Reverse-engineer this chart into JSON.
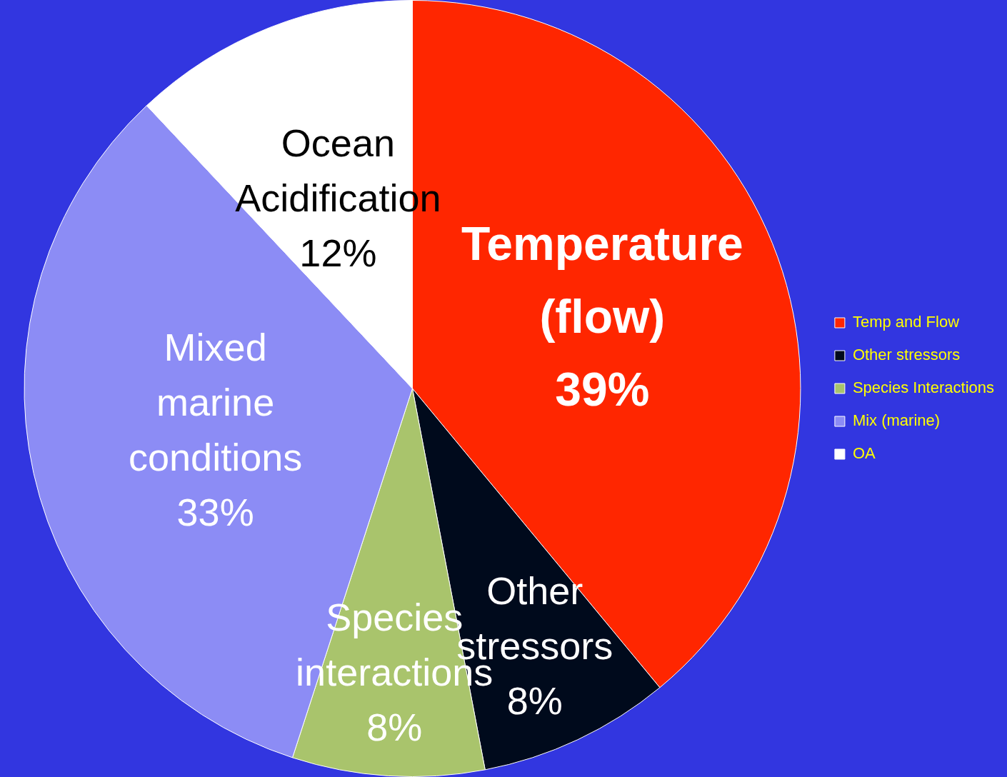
{
  "chart_data": {
    "type": "pie",
    "categories": [
      "Temp and Flow",
      "Other stressors",
      "Species Interactions",
      "Mix (marine)",
      "OA"
    ],
    "values": [
      39,
      8,
      8,
      33,
      12
    ],
    "colors": [
      "#ff2600",
      "#000a1c",
      "#a9c46c",
      "#8c8cf5",
      "#ffffff"
    ],
    "value_labels": [
      "Temperature (flow) 39%",
      "Other stressors 8%",
      "Species interactions 8%",
      "Mixed marine conditions 33%",
      "Ocean Acidification 12%"
    ],
    "legend": "right"
  }
}
